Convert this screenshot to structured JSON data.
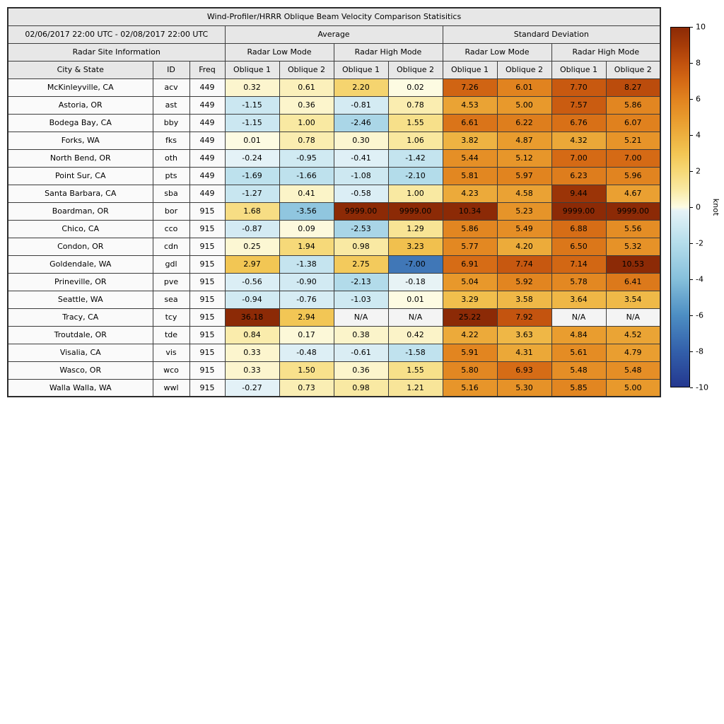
{
  "title": "Wind-Profiler/HRRR Oblique Beam Velocity Comparison Statisitics",
  "header": {
    "date_range": "02/06/2017 22:00 UTC - 02/08/2017 22:00 UTC",
    "group_average": "Average",
    "group_std": "Standard Deviation",
    "site_info": "Radar Site Information",
    "low_mode": "Radar Low Mode",
    "high_mode": "Radar High Mode",
    "col_city": "City & State",
    "col_id": "ID",
    "col_freq": "Freq",
    "col_oblique1": "Oblique 1",
    "col_oblique2": "Oblique 2"
  },
  "colorbar": {
    "label": "knot",
    "min": -10,
    "max": 10,
    "ticks": [
      10,
      8,
      6,
      4,
      2,
      0,
      -2,
      -4,
      -6,
      -8,
      -10
    ],
    "na_color": "#f4f4f4",
    "stops": [
      {
        "v": -10,
        "c": "#24388f"
      },
      {
        "v": -8,
        "c": "#3360ab"
      },
      {
        "v": -6,
        "c": "#4d8ec3"
      },
      {
        "v": -4,
        "c": "#86c0db"
      },
      {
        "v": -2,
        "c": "#b5ddeb"
      },
      {
        "v": -1,
        "c": "#cfe9f2"
      },
      {
        "v": -0.2,
        "c": "#e5f2f7"
      },
      {
        "v": 0,
        "c": "#fdfbe3"
      },
      {
        "v": 1,
        "c": "#f9e9a2"
      },
      {
        "v": 2,
        "c": "#f6d876"
      },
      {
        "v": 3,
        "c": "#f2c553"
      },
      {
        "v": 4,
        "c": "#edaf3e"
      },
      {
        "v": 5,
        "c": "#e8992c"
      },
      {
        "v": 6,
        "c": "#e1831f"
      },
      {
        "v": 7,
        "c": "#d56a15"
      },
      {
        "v": 8,
        "c": "#c2520e"
      },
      {
        "v": 9,
        "c": "#a73c08"
      },
      {
        "v": 10,
        "c": "#8c2a06"
      }
    ]
  },
  "chart_data": {
    "type": "heatmap",
    "title": "Wind-Profiler/HRRR Oblique Beam Velocity Comparison Statisitics",
    "subtitle": "02/06/2017 22:00 UTC - 02/08/2017 22:00 UTC",
    "value_unit": "knot",
    "color_range": [
      -10,
      10
    ],
    "columns": [
      "City & State",
      "ID",
      "Freq",
      "Average Radar Low Mode Oblique 1",
      "Average Radar Low Mode Oblique 2",
      "Average Radar High Mode Oblique 1",
      "Average Radar High Mode Oblique 2",
      "Standard Deviation Radar Low Mode Oblique 1",
      "Standard Deviation Radar Low Mode Oblique 2",
      "Standard Deviation Radar High Mode Oblique 1",
      "Standard Deviation Radar High Mode Oblique 2"
    ],
    "rows": [
      {
        "city": "McKinleyville, CA",
        "id": "acv",
        "freq": 449,
        "values": [
          0.32,
          0.61,
          2.2,
          0.02,
          7.26,
          6.01,
          7.7,
          8.27
        ]
      },
      {
        "city": "Astoria, OR",
        "id": "ast",
        "freq": 449,
        "values": [
          -1.15,
          0.36,
          -0.81,
          0.78,
          4.53,
          5.0,
          7.57,
          5.86
        ]
      },
      {
        "city": "Bodega Bay, CA",
        "id": "bby",
        "freq": 449,
        "values": [
          -1.15,
          1.0,
          -2.46,
          1.55,
          6.61,
          6.22,
          6.76,
          6.07
        ]
      },
      {
        "city": "Forks, WA",
        "id": "fks",
        "freq": 449,
        "values": [
          0.01,
          0.78,
          0.3,
          1.06,
          3.82,
          4.87,
          4.32,
          5.21
        ]
      },
      {
        "city": "North Bend, OR",
        "id": "oth",
        "freq": 449,
        "values": [
          -0.24,
          -0.95,
          -0.41,
          -1.42,
          5.44,
          5.12,
          7.0,
          7.0
        ]
      },
      {
        "city": "Point Sur, CA",
        "id": "pts",
        "freq": 449,
        "values": [
          -1.69,
          -1.66,
          -1.08,
          -2.1,
          5.81,
          5.97,
          6.23,
          5.96
        ]
      },
      {
        "city": "Santa Barbara, CA",
        "id": "sba",
        "freq": 449,
        "values": [
          -1.27,
          0.41,
          -0.58,
          1.0,
          4.23,
          4.58,
          9.44,
          4.67
        ]
      },
      {
        "city": "Boardman, OR",
        "id": "bor",
        "freq": 915,
        "values": [
          1.68,
          -3.56,
          9999.0,
          9999.0,
          10.34,
          5.23,
          9999.0,
          9999.0
        ]
      },
      {
        "city": "Chico, CA",
        "id": "cco",
        "freq": 915,
        "values": [
          -0.87,
          0.09,
          -2.53,
          1.29,
          5.86,
          5.49,
          6.88,
          5.56
        ]
      },
      {
        "city": "Condon, OR",
        "id": "cdn",
        "freq": 915,
        "values": [
          0.25,
          1.94,
          0.98,
          3.23,
          5.77,
          4.2,
          6.5,
          5.32
        ]
      },
      {
        "city": "Goldendale, WA",
        "id": "gdl",
        "freq": 915,
        "values": [
          2.97,
          -1.38,
          2.75,
          -7.0,
          6.91,
          7.74,
          7.14,
          10.53
        ]
      },
      {
        "city": "Prineville, OR",
        "id": "pve",
        "freq": 915,
        "values": [
          -0.56,
          -0.9,
          -2.13,
          -0.18,
          5.04,
          5.92,
          5.78,
          6.41
        ]
      },
      {
        "city": "Seattle, WA",
        "id": "sea",
        "freq": 915,
        "values": [
          -0.94,
          -0.76,
          -1.03,
          0.01,
          3.29,
          3.58,
          3.64,
          3.54
        ]
      },
      {
        "city": "Tracy, CA",
        "id": "tcy",
        "freq": 915,
        "values": [
          36.18,
          2.94,
          "N/A",
          "N/A",
          25.22,
          7.92,
          "N/A",
          "N/A"
        ]
      },
      {
        "city": "Troutdale, OR",
        "id": "tde",
        "freq": 915,
        "values": [
          0.84,
          0.17,
          0.38,
          0.42,
          4.22,
          3.63,
          4.84,
          4.52
        ]
      },
      {
        "city": "Visalia, CA",
        "id": "vis",
        "freq": 915,
        "values": [
          0.33,
          -0.48,
          -0.61,
          -1.58,
          5.91,
          4.31,
          5.61,
          4.79
        ]
      },
      {
        "city": "Wasco, OR",
        "id": "wco",
        "freq": 915,
        "values": [
          0.33,
          1.5,
          0.36,
          1.55,
          5.8,
          6.93,
          5.48,
          5.48
        ]
      },
      {
        "city": "Walla Walla, WA",
        "id": "wwl",
        "freq": 915,
        "values": [
          -0.27,
          0.73,
          0.98,
          1.21,
          5.16,
          5.3,
          5.85,
          5.0
        ]
      }
    ]
  }
}
